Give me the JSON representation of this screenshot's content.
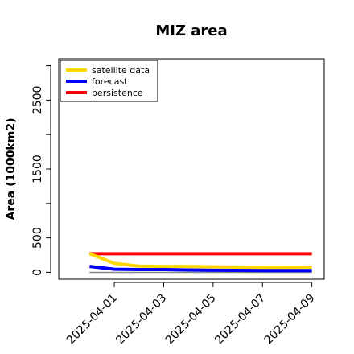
{
  "chart_data": {
    "type": "line",
    "title": "MIZ area",
    "ylabel": "Area (1000km2)",
    "xlabel": "",
    "x_dates": [
      "2025-04-01",
      "2025-04-02",
      "2025-04-03",
      "2025-04-04",
      "2025-04-05",
      "2025-04-06",
      "2025-04-07",
      "2025-04-08",
      "2025-04-09"
    ],
    "x_tick_labels": [
      "2025-04-01",
      "2025-04-03",
      "2025-04-05",
      "2025-04-07",
      "2025-04-09"
    ],
    "x_tick_colors": [
      "#228B22",
      "#000000",
      "#000000",
      "#000000",
      "#000000"
    ],
    "y_ticks": [
      0,
      500,
      1500,
      2500
    ],
    "ylim": [
      -100,
      3100
    ],
    "xlim": [
      "2025-03-29 18:00",
      "2025-04-09 12:00"
    ],
    "zero_line": true,
    "legend_position": "top-left",
    "series": [
      {
        "name": "satellite data",
        "color": "#FFD700",
        "x": [
          "2025-03-31",
          "2025-04-01",
          "2025-04-02",
          "2025-04-03",
          "2025-04-04",
          "2025-04-05",
          "2025-04-06",
          "2025-04-07",
          "2025-04-08",
          "2025-04-09"
        ],
        "values": [
          270,
          130,
          90,
          85,
          85,
          80,
          75,
          70,
          70,
          75
        ]
      },
      {
        "name": "forecast",
        "color": "#0000FF",
        "x": [
          "2025-03-31",
          "2025-04-01",
          "2025-04-02",
          "2025-04-03",
          "2025-04-04",
          "2025-04-05",
          "2025-04-06",
          "2025-04-07",
          "2025-04-08",
          "2025-04-09"
        ],
        "values": [
          85,
          45,
          40,
          40,
          35,
          30,
          28,
          25,
          25,
          25
        ]
      },
      {
        "name": "persistence",
        "color": "#FF0000",
        "x": [
          "2025-03-31",
          "2025-04-09"
        ],
        "values": [
          270,
          270
        ]
      }
    ]
  }
}
